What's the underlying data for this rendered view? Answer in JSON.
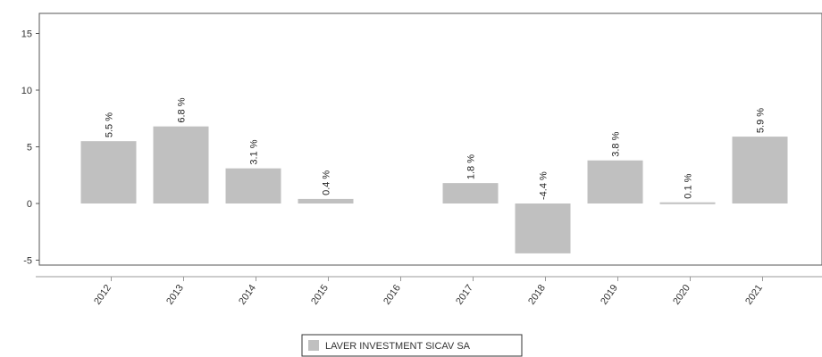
{
  "chart_data": {
    "type": "bar",
    "categories": [
      "2012",
      "2013",
      "2014",
      "2015",
      "2016",
      "2017",
      "2018",
      "2019",
      "2020",
      "2021"
    ],
    "series": [
      {
        "name": "LAVER INVESTMENT SICAV SA",
        "values": [
          5.5,
          6.8,
          3.1,
          0.4,
          null,
          1.8,
          -4.4,
          3.8,
          0.1,
          5.9
        ],
        "labels": [
          "5.5 %",
          "6.8 %",
          "3.1 %",
          "0.4 %",
          "",
          "1.8 %",
          "-4.4 %",
          "3.8 %",
          "0.1 %",
          "5.9 %"
        ],
        "color": "#c0c0c0"
      }
    ],
    "yticks": [
      "15",
      "10",
      "5",
      "0",
      "-5"
    ],
    "ylim": [
      -5.5,
      17
    ],
    "grid": false,
    "legend_position": "bottom-center",
    "title": "",
    "xlabel": "",
    "ylabel": ""
  }
}
